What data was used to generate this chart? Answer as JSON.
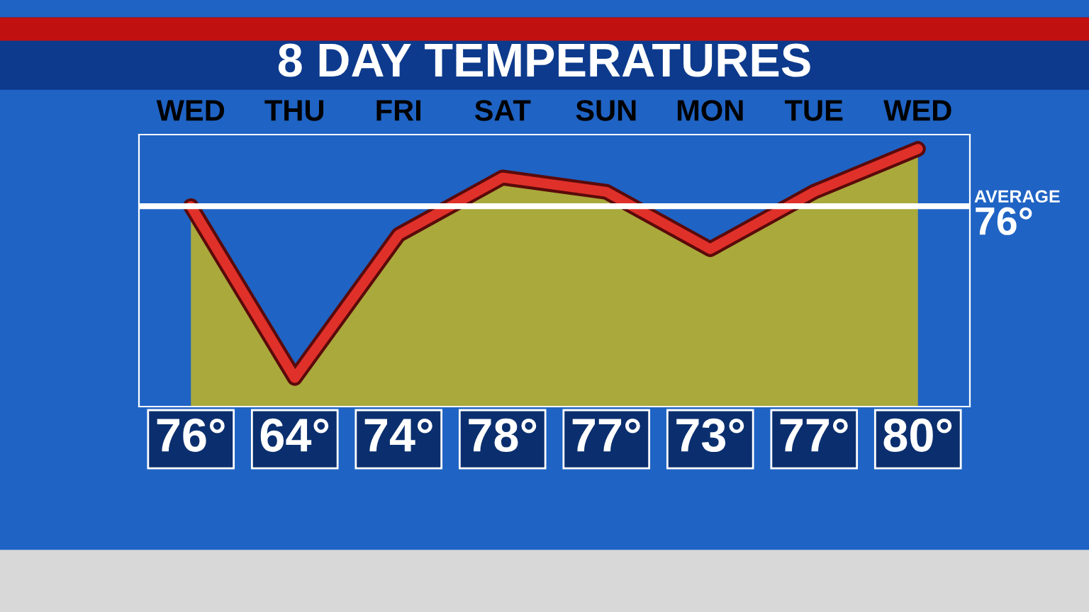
{
  "chart_data": {
    "type": "area",
    "title": "8 DAY TEMPERATURES",
    "categories": [
      "WED",
      "THU",
      "FRI",
      "SAT",
      "SUN",
      "MON",
      "TUE",
      "WED"
    ],
    "series": [
      {
        "color": "#e0302a",
        "values": [
          76,
          64,
          74,
          78,
          77,
          73,
          77,
          80
        ],
        "value_labels": [
          "76°",
          "64°",
          "74°",
          "78°",
          "77°",
          "73°",
          "77°",
          "80°"
        ]
      }
    ],
    "ylim": [
      62,
      81
    ],
    "ref_lines": [
      {
        "axis": "y",
        "value": 76,
        "label": "AVERAGE 76°",
        "color": "#ffffff"
      }
    ],
    "grid": false,
    "legend": false
  }
}
